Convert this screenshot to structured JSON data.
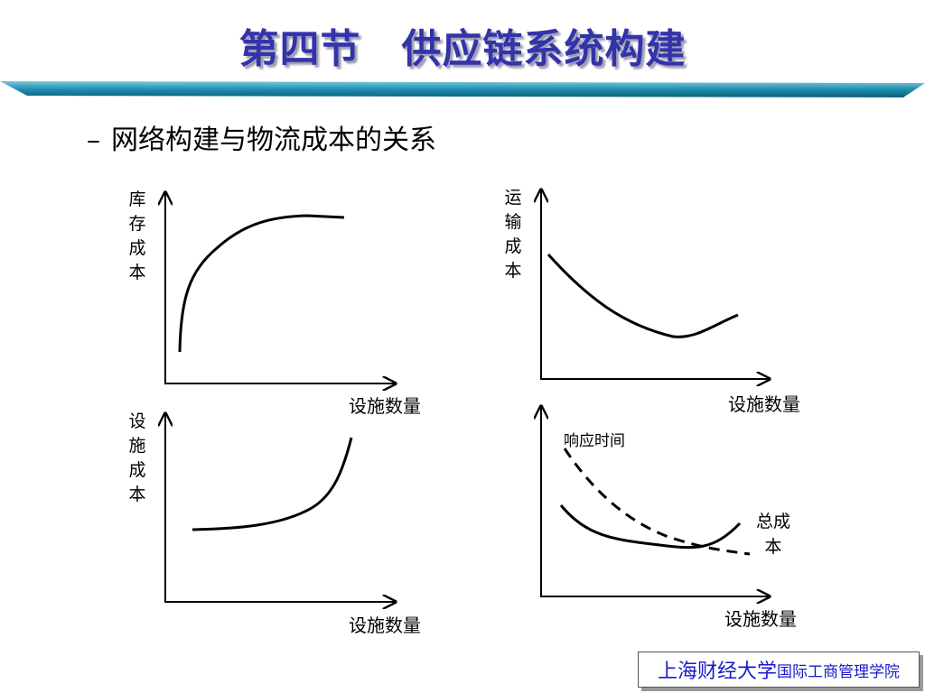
{
  "title": "第四节　供应链系统构建",
  "bullet": {
    "marker": "–",
    "text": "网络构建与物流成本的关系"
  },
  "panels": [
    {
      "y_label": "库存成本",
      "x_label": "设施数量"
    },
    {
      "y_label": "运输成本",
      "x_label": "设施数量"
    },
    {
      "y_label": "设施成本",
      "x_label": "设施数量"
    },
    {
      "x_label": "设施数量",
      "curves": [
        "响应时间",
        "总成本"
      ]
    }
  ],
  "footer": {
    "university": "上海财经大学",
    "department": "国际工商管理学院"
  }
}
